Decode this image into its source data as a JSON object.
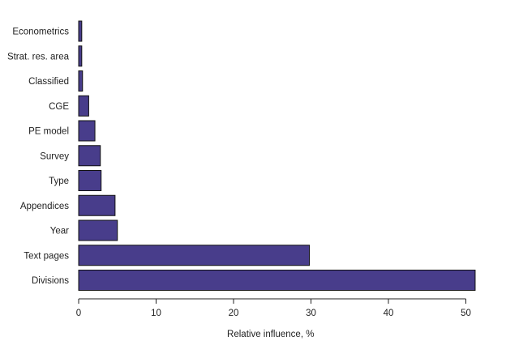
{
  "chart_data": {
    "type": "bar",
    "orientation": "horizontal",
    "title": "",
    "xlabel": "Relative influence, %",
    "ylabel": "",
    "xlim": [
      0,
      52
    ],
    "xticks": [
      0,
      10,
      20,
      30,
      40,
      50
    ],
    "grid": false,
    "legend": "none",
    "bar_color": "#483D8B",
    "bar_edge_color": "#111111",
    "categories": [
      "Econometrics",
      "Strat. res. area",
      "Classified",
      "CGE",
      "PE model",
      "Survey",
      "Type",
      "Appendices",
      "Year",
      "Text pages",
      "Divisions"
    ],
    "values": [
      0.4,
      0.4,
      0.5,
      1.3,
      2.1,
      2.8,
      2.9,
      4.7,
      5.0,
      29.8,
      51.2
    ]
  }
}
